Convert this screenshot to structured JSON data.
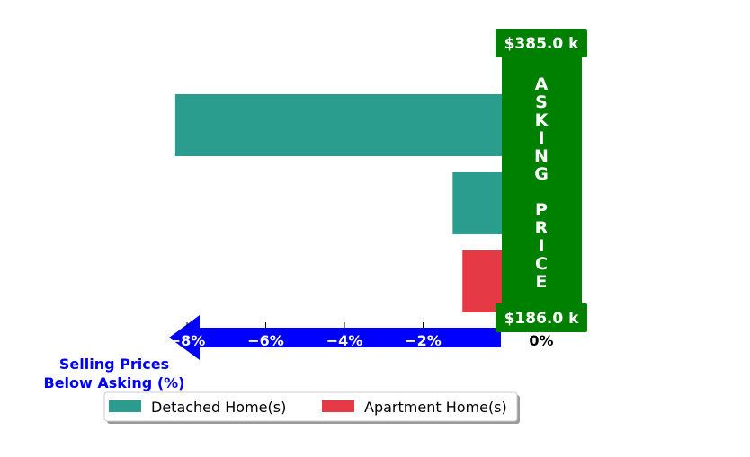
{
  "chart_data": {
    "type": "bar",
    "orientation": "horizontal",
    "series": [
      {
        "name": "Detached Home(s)",
        "color": "#2a9d8f",
        "values": [
          -8.3,
          -1.25
        ]
      },
      {
        "name": "Apartment Home(s)",
        "color": "#e63946",
        "values": [
          -1.0
        ]
      }
    ],
    "x_axis": {
      "title": "Selling Prices\nBelow Asking (%)",
      "ticks": [
        -8,
        -6,
        -4,
        -2
      ],
      "tick_labels": [
        "−8%",
        "−6%",
        "−4%",
        "−2%"
      ],
      "zero_label": "0%",
      "xlim": [
        -9.5,
        1.4
      ],
      "arrow_color": "#0000ff"
    },
    "asking_price_banner": {
      "text": "ASKING PRICE",
      "color": "#008000",
      "max_label": "$385.0 k",
      "min_label": "$186.0 k"
    },
    "legend": {
      "placement": "bottom",
      "entries": [
        "Detached Home(s)",
        "Apartment Home(s)"
      ]
    }
  }
}
